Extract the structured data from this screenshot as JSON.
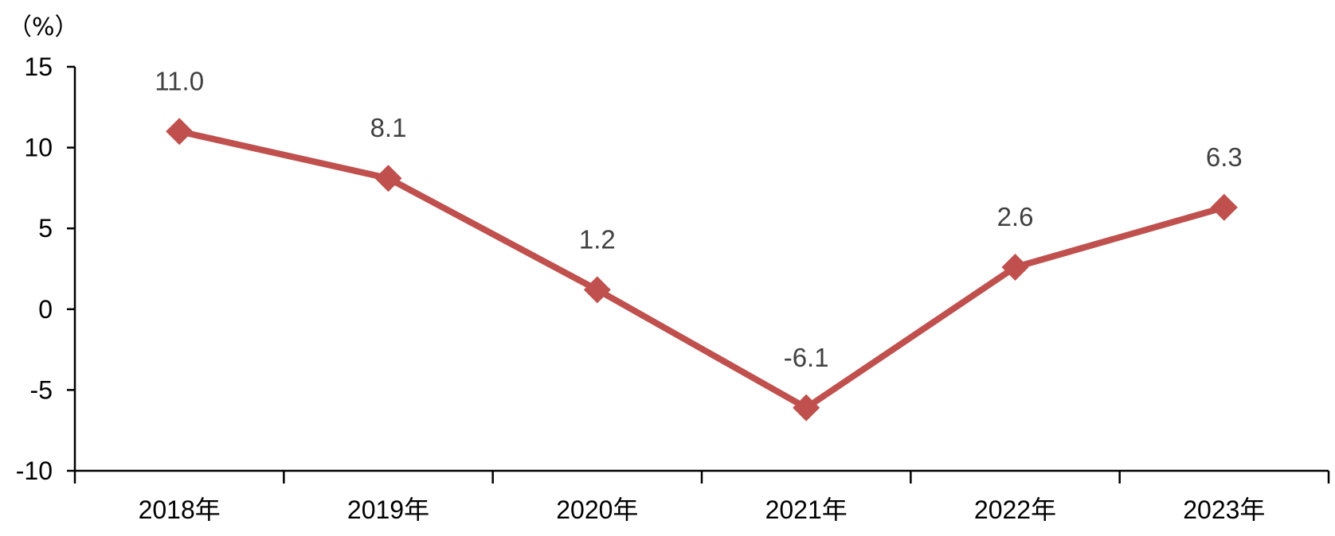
{
  "chart_data": {
    "type": "line",
    "title": "",
    "xlabel": "",
    "ylabel": "",
    "unit_label": "（%）",
    "categories": [
      "2018年",
      "2019年",
      "2020年",
      "2021年",
      "2022年",
      "2023年"
    ],
    "series": [
      {
        "values": [
          11.0,
          8.1,
          1.2,
          -6.1,
          2.6,
          6.3
        ],
        "labels": [
          "11.0",
          "8.1",
          "1.2",
          "-6.1",
          "2.6",
          "6.3"
        ],
        "color": "#C0504D",
        "marker": "diamond"
      }
    ],
    "ylim": [
      -10,
      15
    ],
    "yticks": [
      -10,
      -5,
      0,
      5,
      10,
      15
    ],
    "ytick_labels": [
      "-10",
      "-5",
      "0",
      "5",
      "10",
      "15"
    ],
    "grid": false,
    "legend": "none"
  }
}
